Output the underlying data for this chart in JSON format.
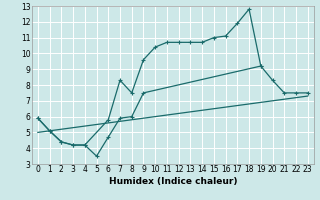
{
  "xlabel": "Humidex (Indice chaleur)",
  "bg_color": "#cde8e8",
  "grid_color": "#ffffff",
  "line_color": "#1a6b6b",
  "xlim": [
    -0.5,
    23.5
  ],
  "ylim": [
    3,
    13
  ],
  "line1_x": [
    0,
    1,
    2,
    3,
    4,
    6,
    7,
    8,
    9,
    10,
    11,
    12,
    13,
    14,
    15,
    16,
    17,
    18,
    19
  ],
  "line1_y": [
    5.9,
    5.1,
    4.4,
    4.2,
    4.2,
    5.8,
    8.3,
    7.5,
    9.6,
    10.4,
    10.7,
    10.7,
    10.7,
    10.7,
    11.0,
    11.1,
    11.9,
    12.8,
    9.2
  ],
  "line2_x": [
    0,
    1,
    2,
    3,
    4,
    5,
    6,
    7,
    8,
    9,
    19,
    20,
    21,
    22,
    23
  ],
  "line2_y": [
    5.9,
    5.1,
    4.4,
    4.2,
    4.2,
    3.5,
    4.7,
    5.9,
    6.0,
    7.5,
    9.2,
    8.3,
    7.5,
    7.5,
    7.5
  ],
  "line3_x": [
    0,
    23
  ],
  "line3_y": [
    5.0,
    7.3
  ],
  "xticks": [
    0,
    1,
    2,
    3,
    4,
    5,
    6,
    7,
    8,
    9,
    10,
    11,
    12,
    13,
    14,
    15,
    16,
    17,
    18,
    19,
    20,
    21,
    22,
    23
  ],
  "yticks": [
    3,
    4,
    5,
    6,
    7,
    8,
    9,
    10,
    11,
    12,
    13
  ]
}
